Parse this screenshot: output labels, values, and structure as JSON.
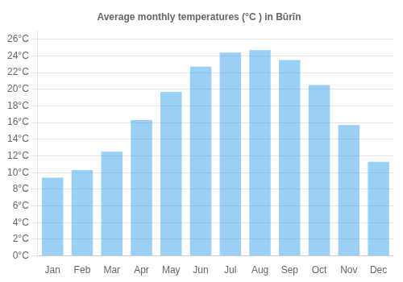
{
  "chart_data": {
    "type": "bar",
    "title": "Average monthly temperatures (°C ) in Būrīn",
    "categories": [
      "Jan",
      "Feb",
      "Mar",
      "Apr",
      "May",
      "Jun",
      "Jul",
      "Aug",
      "Sep",
      "Oct",
      "Nov",
      "Dec"
    ],
    "values": [
      9.4,
      10.3,
      12.5,
      16.3,
      19.7,
      22.7,
      24.4,
      24.7,
      23.5,
      20.5,
      15.7,
      11.3
    ],
    "ylim": [
      0,
      27
    ],
    "yticks": [
      {
        "value": 0,
        "label": "0°C"
      },
      {
        "value": 2,
        "label": "2°C"
      },
      {
        "value": 4,
        "label": "4°C"
      },
      {
        "value": 6,
        "label": "6°C"
      },
      {
        "value": 8,
        "label": "8°C"
      },
      {
        "value": 10,
        "label": "10°C"
      },
      {
        "value": 12,
        "label": "12°C"
      },
      {
        "value": 14,
        "label": "14°C"
      },
      {
        "value": 16,
        "label": "16°C"
      },
      {
        "value": 18,
        "label": "18°C"
      },
      {
        "value": 20,
        "label": "20°C"
      },
      {
        "value": 22,
        "label": "22°C"
      },
      {
        "value": 24,
        "label": "24°C"
      },
      {
        "value": 26,
        "label": "26°C"
      }
    ],
    "grid": true
  }
}
